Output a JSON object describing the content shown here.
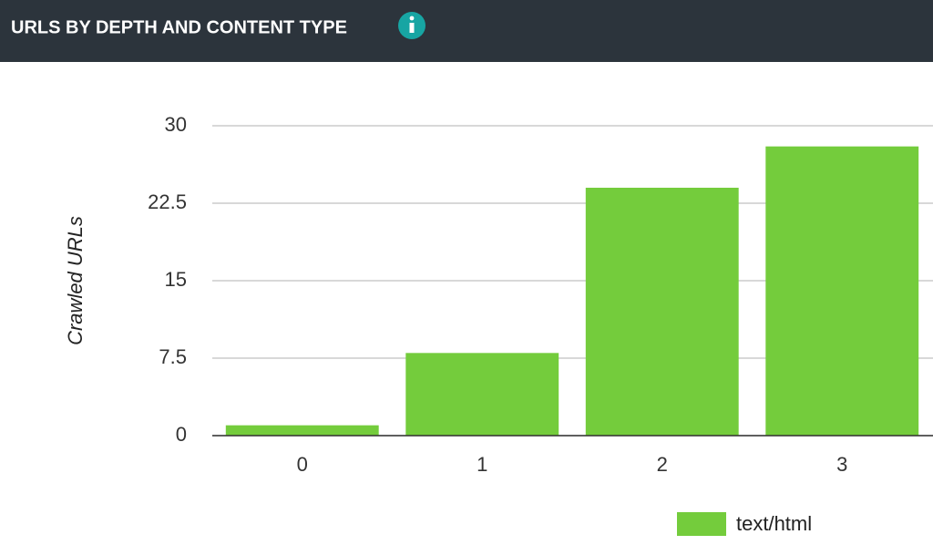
{
  "chart_data": {
    "type": "bar",
    "title": "URLS BY DEPTH AND CONTENT TYPE",
    "y_label": "Crawled URLs",
    "categories": [
      "0",
      "1",
      "2",
      "3"
    ],
    "series": [
      {
        "name": "text/html",
        "color": "#74cc3c",
        "values": [
          1,
          8,
          24,
          28
        ]
      }
    ],
    "ylim": [
      0,
      30
    ],
    "yticks": [
      0,
      7.5,
      15,
      22.5,
      30
    ],
    "grid": true,
    "legend": "bottom"
  }
}
